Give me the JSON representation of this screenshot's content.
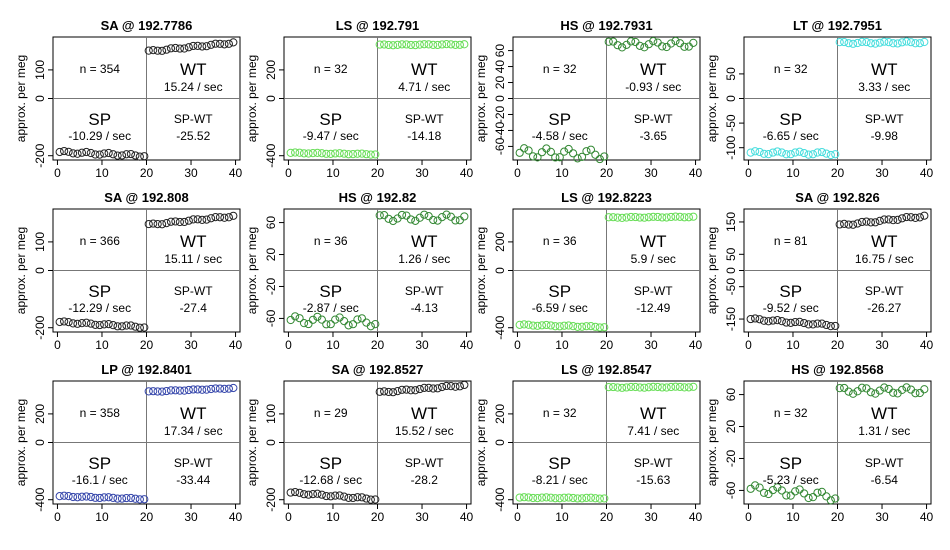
{
  "y_axis_label": "approx. per meg",
  "chart_data": [
    {
      "type": "scatter",
      "title": "SA @ 192.7786",
      "ylabel": "approx. per meg",
      "color": "#222222",
      "yticks": [
        -200,
        0,
        100
      ],
      "ylim": [
        -215,
        215
      ],
      "xlim": [
        -1,
        41
      ],
      "xticks": [
        0,
        10,
        20,
        30,
        40
      ],
      "sp": {
        "start": -187,
        "end": -200,
        "wave": 4
      },
      "wt": {
        "start": 165,
        "end": 195,
        "wave": 3
      },
      "n_label": "n = 354",
      "wt_label": "WT",
      "wt_rate": "15.24 / sec",
      "sp_label": "SP",
      "sp_rate": "-10.29 / sec",
      "diff_label": "SP-WT",
      "diff_value": "-25.52"
    },
    {
      "type": "scatter",
      "title": "LS @ 192.791",
      "ylabel": "approx. per meg",
      "color": "#66dd55",
      "yticks": [
        -400,
        0,
        200
      ],
      "ylim": [
        -430,
        430
      ],
      "xlim": [
        -1,
        41
      ],
      "xticks": [
        0,
        10,
        20,
        30,
        40
      ],
      "sp": {
        "start": -380,
        "end": -390,
        "wave": 3
      },
      "wt": {
        "start": 375,
        "end": 378,
        "wave": 3
      },
      "n_label": "n = 32",
      "wt_label": "WT",
      "wt_rate": "4.71 / sec",
      "sp_label": "SP",
      "sp_rate": "-9.47 / sec",
      "diff_label": "SP-WT",
      "diff_value": "-14.18"
    },
    {
      "type": "scatter",
      "title": "HS @ 192.7931",
      "ylabel": "approx. per meg",
      "color": "#338833",
      "yticks": [
        -60,
        -40,
        -20,
        0,
        20,
        40,
        60
      ],
      "ylim": [
        -77,
        77
      ],
      "xlim": [
        -1,
        41
      ],
      "xticks": [
        0,
        10,
        20,
        30,
        40
      ],
      "sp": {
        "start": -68,
        "end": -70,
        "wave": 6
      },
      "wt": {
        "start": 68,
        "end": 68,
        "wave": 4
      },
      "n_label": "n = 32",
      "wt_label": "WT",
      "wt_rate": "-0.93 / sec",
      "sp_label": "SP",
      "sp_rate": "-4.58 / sec",
      "diff_label": "SP-WT",
      "diff_value": "-3.65"
    },
    {
      "type": "scatter",
      "title": "LT @ 192.7951",
      "ylabel": "approx. per meg",
      "color": "#44dddd",
      "yticks": [
        -100,
        -50,
        0,
        50
      ],
      "ylim": [
        -125,
        125
      ],
      "xlim": [
        -1,
        41
      ],
      "xticks": [
        0,
        10,
        20,
        30,
        40
      ],
      "sp": {
        "start": -110,
        "end": -112,
        "wave": 3
      },
      "wt": {
        "start": 113,
        "end": 114,
        "wave": 2
      },
      "n_label": "n = 32",
      "wt_label": "WT",
      "wt_rate": "3.33 / sec",
      "sp_label": "SP",
      "sp_rate": "-6.65 / sec",
      "diff_label": "SP-WT",
      "diff_value": "-9.98"
    },
    {
      "type": "scatter",
      "title": "SA @ 192.808",
      "ylabel": "approx. per meg",
      "color": "#222222",
      "yticks": [
        -200,
        0,
        100
      ],
      "ylim": [
        -215,
        215
      ],
      "xlim": [
        -1,
        41
      ],
      "xticks": [
        0,
        10,
        20,
        30,
        40
      ],
      "sp": {
        "start": -180,
        "end": -198,
        "wave": 3
      },
      "wt": {
        "start": 160,
        "end": 190,
        "wave": 3
      },
      "n_label": "n = 366",
      "wt_label": "WT",
      "wt_rate": "15.11 / sec",
      "sp_label": "SP",
      "sp_rate": "-12.29 / sec",
      "diff_label": "SP-WT",
      "diff_value": "-27.4"
    },
    {
      "type": "scatter",
      "title": "HS @ 192.82",
      "ylabel": "approx. per meg",
      "color": "#338833",
      "yticks": [
        -60,
        -20,
        20,
        60
      ],
      "ylim": [
        -77,
        77
      ],
      "xlim": [
        -1,
        41
      ],
      "xticks": [
        0,
        10,
        20,
        30,
        40
      ],
      "sp": {
        "start": -62,
        "end": -65,
        "wave": 5
      },
      "wt": {
        "start": 66,
        "end": 66,
        "wave": 4
      },
      "n_label": "n = 36",
      "wt_label": "WT",
      "wt_rate": "1.26 / sec",
      "sp_label": "SP",
      "sp_rate": "-2.87 / sec",
      "diff_label": "SP-WT",
      "diff_value": "-4.13"
    },
    {
      "type": "scatter",
      "title": "LS @ 192.8223",
      "ylabel": "approx. per meg",
      "color": "#66dd55",
      "yticks": [
        -400,
        0,
        200
      ],
      "ylim": [
        -430,
        430
      ],
      "xlim": [
        -1,
        41
      ],
      "xticks": [
        0,
        10,
        20,
        30,
        40
      ],
      "sp": {
        "start": -380,
        "end": -395,
        "wave": 4
      },
      "wt": {
        "start": 370,
        "end": 375,
        "wave": 3
      },
      "n_label": "n = 36",
      "wt_label": "WT",
      "wt_rate": "5.9 / sec",
      "sp_label": "SP",
      "sp_rate": "-6.59 / sec",
      "diff_label": "SP-WT",
      "diff_value": "-12.49"
    },
    {
      "type": "scatter",
      "title": "SA @ 192.826",
      "ylabel": "approx. per meg",
      "color": "#222222",
      "yticks": [
        -150,
        -50,
        0,
        50,
        150
      ],
      "ylim": [
        -190,
        190
      ],
      "xlim": [
        -1,
        41
      ],
      "xticks": [
        0,
        10,
        20,
        30,
        40
      ],
      "sp": {
        "start": -150,
        "end": -170,
        "wave": 3
      },
      "wt": {
        "start": 140,
        "end": 168,
        "wave": 3
      },
      "n_label": "n = 81",
      "wt_label": "WT",
      "wt_rate": "16.75 / sec",
      "sp_label": "SP",
      "sp_rate": "-9.52 / sec",
      "diff_label": "SP-WT",
      "diff_value": "-26.27"
    },
    {
      "type": "scatter",
      "title": "LP @ 192.8401",
      "ylabel": "approx. per meg",
      "color": "#3344aa",
      "yticks": [
        -400,
        0,
        200
      ],
      "ylim": [
        -430,
        430
      ],
      "xlim": [
        -1,
        41
      ],
      "xticks": [
        0,
        10,
        20,
        30,
        40
      ],
      "sp": {
        "start": -375,
        "end": -395,
        "wave": 4
      },
      "wt": {
        "start": 355,
        "end": 380,
        "wave": 3
      },
      "n_label": "n = 358",
      "wt_label": "WT",
      "wt_rate": "17.34 / sec",
      "sp_label": "SP",
      "sp_rate": "-16.1 / sec",
      "diff_label": "SP-WT",
      "diff_value": "-33.44"
    },
    {
      "type": "scatter",
      "title": "SA @ 192.8527",
      "ylabel": "approx. per meg",
      "color": "#222222",
      "yticks": [
        -200,
        0,
        100
      ],
      "ylim": [
        -215,
        215
      ],
      "xlim": [
        -1,
        41
      ],
      "xticks": [
        0,
        10,
        20,
        30,
        40
      ],
      "sp": {
        "start": -175,
        "end": -198,
        "wave": 3
      },
      "wt": {
        "start": 175,
        "end": 200,
        "wave": 3
      },
      "n_label": "n = 29",
      "wt_label": "WT",
      "wt_rate": "15.52 / sec",
      "sp_label": "SP",
      "sp_rate": "-12.68 / sec",
      "diff_label": "SP-WT",
      "diff_value": "-28.2"
    },
    {
      "type": "scatter",
      "title": "LS @ 192.8547",
      "ylabel": "approx. per meg",
      "color": "#66dd55",
      "yticks": [
        -400,
        0,
        200
      ],
      "ylim": [
        -430,
        430
      ],
      "xlim": [
        -1,
        41
      ],
      "xticks": [
        0,
        10,
        20,
        30,
        40
      ],
      "sp": {
        "start": -385,
        "end": -390,
        "wave": 3
      },
      "wt": {
        "start": 385,
        "end": 388,
        "wave": 3
      },
      "n_label": "n = 32",
      "wt_label": "WT",
      "wt_rate": "7.41 / sec",
      "sp_label": "SP",
      "sp_rate": "-8.21 / sec",
      "diff_label": "SP-WT",
      "diff_value": "-15.63"
    },
    {
      "type": "scatter",
      "title": "HS @ 192.8568",
      "ylabel": "approx. per meg",
      "color": "#338833",
      "yticks": [
        -60,
        -20,
        20,
        60
      ],
      "ylim": [
        -77,
        77
      ],
      "xlim": [
        -1,
        41
      ],
      "xticks": [
        0,
        10,
        20,
        30,
        40
      ],
      "sp": {
        "start": -58,
        "end": -68,
        "wave": 5
      },
      "wt": {
        "start": 65,
        "end": 65,
        "wave": 4
      },
      "n_label": "n = 32",
      "wt_label": "WT",
      "wt_rate": "1.31 / sec",
      "sp_label": "SP",
      "sp_rate": "-5.23 / sec",
      "diff_label": "SP-WT",
      "diff_value": "-6.54"
    }
  ]
}
